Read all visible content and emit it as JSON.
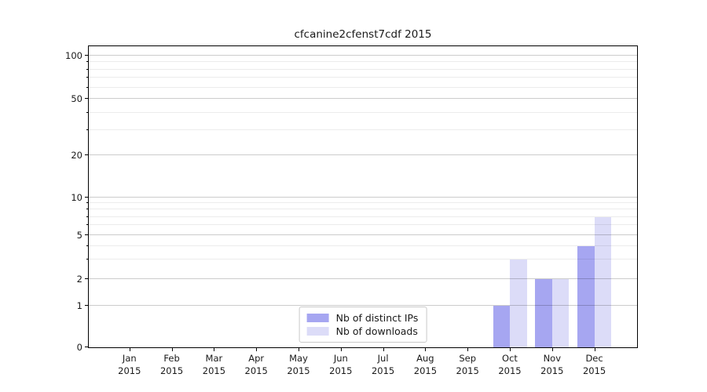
{
  "chart_data": {
    "type": "bar",
    "title": "cfcanine2cfenst7cdf 2015",
    "categories": [
      {
        "label": "Jan",
        "sub": "2015"
      },
      {
        "label": "Feb",
        "sub": "2015"
      },
      {
        "label": "Mar",
        "sub": "2015"
      },
      {
        "label": "Apr",
        "sub": "2015"
      },
      {
        "label": "May",
        "sub": "2015"
      },
      {
        "label": "Jun",
        "sub": "2015"
      },
      {
        "label": "Jul",
        "sub": "2015"
      },
      {
        "label": "Aug",
        "sub": "2015"
      },
      {
        "label": "Sep",
        "sub": "2015"
      },
      {
        "label": "Oct",
        "sub": "2015"
      },
      {
        "label": "Nov",
        "sub": "2015"
      },
      {
        "label": "Dec",
        "sub": "2015"
      }
    ],
    "series": [
      {
        "name": "Nb of distinct IPs",
        "key": "distinct-ips",
        "color": "#a6a6f1",
        "values": [
          0,
          0,
          0,
          0,
          0,
          0,
          0,
          0,
          0,
          1,
          2,
          4
        ]
      },
      {
        "name": "Nb of downloads",
        "key": "downloads",
        "color": "#dcdcf8",
        "values": [
          0,
          0,
          0,
          0,
          0,
          0,
          0,
          0,
          0,
          3,
          2,
          7
        ]
      }
    ],
    "y_axis": {
      "scale": "symlog",
      "ticks": [
        0,
        1,
        2,
        5,
        10,
        20,
        50,
        100
      ],
      "minor_ticks": [
        3,
        4,
        6,
        7,
        8,
        9,
        30,
        40,
        60,
        70,
        80,
        90
      ]
    },
    "grid": true,
    "legend_position": "lower center",
    "colors": {
      "axis": "#000000",
      "grid_major": "#c9c9c9",
      "grid_minor": "#ececec",
      "legend_border": "#c9c9c9",
      "background": "#ffffff"
    }
  }
}
